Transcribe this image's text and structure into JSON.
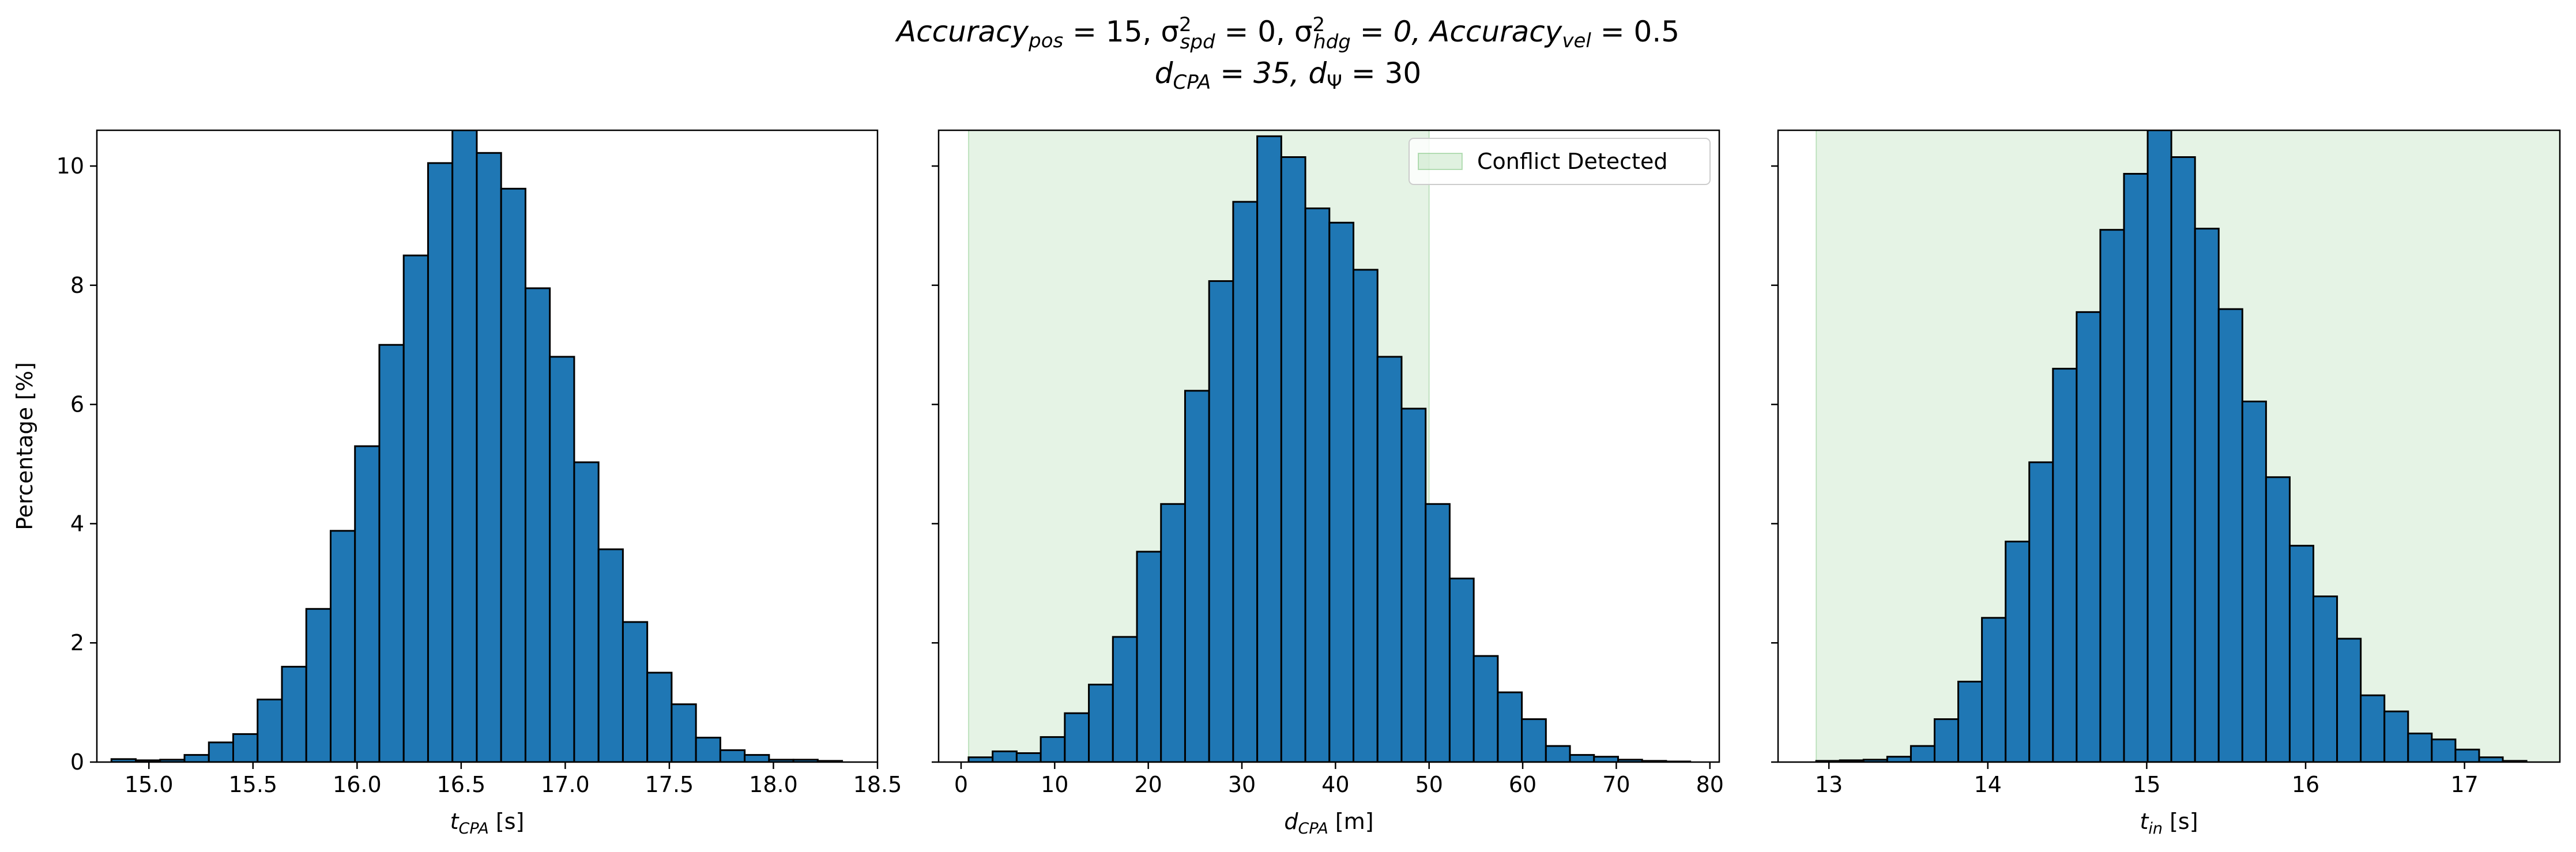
{
  "figure": {
    "title_line1": {
      "pre": "Accuracy",
      "pre_sub": "pos",
      "pre_val": " = 15, σ",
      "s1_sup": "2",
      "s1_sub": "spd",
      "s1_val": " = 0, σ",
      "s2_sup": "2",
      "s2_sub": "hdg",
      "s2_val": " = 0, Accuracy",
      "vel_sub": "vel",
      "vel_val": " = 0.5"
    },
    "title_line2": {
      "d1": "d",
      "d1_sub": "CPA",
      "d1_val": " = 35, d",
      "d2_sub": "Ψ",
      "d2_val": " = 30"
    }
  },
  "colors": {
    "bar_fill": "#1f77b4",
    "bar_edge": "#000000",
    "shade": "#2ca02c"
  },
  "chart_data": [
    {
      "type": "bar",
      "xlabel": {
        "main": "t",
        "sub": "CPA",
        "rest": " [s]"
      },
      "ylabel": "Percentage [%]",
      "xlim": [
        14.75,
        18.5
      ],
      "ylim": [
        0,
        10.6
      ],
      "xticks": [
        "15.0",
        "15.5",
        "16.0",
        "16.5",
        "17.0",
        "17.5",
        "18.0",
        "18.5"
      ],
      "yticks": [
        "0",
        "2",
        "4",
        "6",
        "8",
        "10"
      ],
      "bin_start": 14.82,
      "bin_width": 0.117,
      "values": [
        0.05,
        0.03,
        0.04,
        0.12,
        0.33,
        0.47,
        1.05,
        1.6,
        2.57,
        3.88,
        5.3,
        7.0,
        8.5,
        10.05,
        10.6,
        10.22,
        9.62,
        7.95,
        6.8,
        5.03,
        3.57,
        2.35,
        1.5,
        0.97,
        0.41,
        0.2,
        0.12,
        0.04,
        0.04,
        0.02
      ],
      "shade": null
    },
    {
      "type": "bar",
      "xlabel": {
        "main": "d",
        "sub": "CPA",
        "rest": " [m]"
      },
      "ylabel": "",
      "xlim": [
        -2.4,
        81
      ],
      "ylim": [
        0,
        10.6
      ],
      "xticks": [
        "0",
        "10",
        "20",
        "30",
        "40",
        "50",
        "60",
        "70",
        "80"
      ],
      "yticks": [
        "0",
        "2",
        "4",
        "6",
        "8",
        "10"
      ],
      "bin_start": 0.8,
      "bin_width": 2.57,
      "values": [
        0.08,
        0.18,
        0.15,
        0.42,
        0.82,
        1.3,
        2.1,
        3.53,
        4.33,
        6.23,
        8.07,
        9.4,
        10.5,
        10.15,
        9.29,
        9.05,
        8.26,
        6.8,
        5.93,
        4.33,
        3.08,
        1.78,
        1.17,
        0.72,
        0.27,
        0.12,
        0.09,
        0.04,
        0.02,
        0.01
      ],
      "shade": {
        "from": 0.8,
        "to": 50.0,
        "legend": "Conflict Detected"
      }
    },
    {
      "type": "bar",
      "xlabel": {
        "main": "t",
        "sub": "in",
        "rest": " [s]"
      },
      "ylabel": "",
      "xlim": [
        12.68,
        17.6
      ],
      "ylim": [
        0,
        10.6
      ],
      "xticks": [
        "13",
        "14",
        "15",
        "16",
        "17"
      ],
      "yticks": [
        "0",
        "2",
        "4",
        "6",
        "8",
        "10"
      ],
      "bin_start": 12.92,
      "bin_width": 0.149,
      "values": [
        0.02,
        0.03,
        0.04,
        0.09,
        0.27,
        0.72,
        1.35,
        2.42,
        3.7,
        5.03,
        6.6,
        7.55,
        8.93,
        9.87,
        10.6,
        10.15,
        8.95,
        7.6,
        6.05,
        4.78,
        3.63,
        2.78,
        2.07,
        1.12,
        0.85,
        0.48,
        0.38,
        0.21,
        0.08,
        0.02
      ],
      "shade": {
        "from": 12.92,
        "to": 17.6,
        "legend": ""
      }
    }
  ]
}
